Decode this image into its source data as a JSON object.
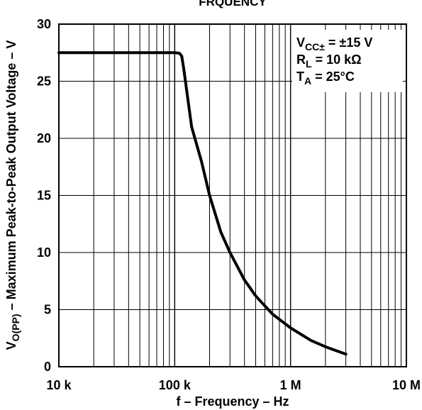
{
  "chart_data": {
    "type": "line",
    "title": "FRQUENCY",
    "xlabel": "f – Frequency – Hz",
    "ylabel": "Maximum Peak-to-Peak Output Voltage – V",
    "ylabel_symbol": "V",
    "ylabel_symbol_sub": "O(PP)",
    "x_scale": "log",
    "xlim": [
      10000,
      10000000
    ],
    "ylim": [
      0,
      30
    ],
    "x_ticks": [
      10000,
      100000,
      1000000,
      10000000
    ],
    "x_tick_labels": [
      "10 k",
      "100 k",
      "1 M",
      "10 M"
    ],
    "y_ticks": [
      0,
      5,
      10,
      15,
      20,
      25,
      30
    ],
    "y_tick_labels": [
      "0",
      "5",
      "10",
      "15",
      "20",
      "25",
      "30"
    ],
    "grid": true,
    "conditions": [
      {
        "main": "V",
        "sub": "CC±",
        "rest": " = ±15 V"
      },
      {
        "main": "R",
        "sub": "L",
        "rest": " = 10 kΩ"
      },
      {
        "main": "T",
        "sub": "A",
        "rest": " = 25°C"
      }
    ],
    "conditions_position": "top-right",
    "series": [
      {
        "x": [
          10000,
          50000,
          100000,
          110000,
          115000,
          120000,
          140000,
          170000,
          200000,
          250000,
          300000,
          400000,
          500000,
          700000,
          1000000,
          1500000,
          2000000,
          3000000
        ],
        "y": [
          27.5,
          27.5,
          27.5,
          27.45,
          27.2,
          26.0,
          21.0,
          18.0,
          15.0,
          11.8,
          10.0,
          7.6,
          6.2,
          4.6,
          3.4,
          2.3,
          1.75,
          1.1
        ]
      }
    ]
  }
}
